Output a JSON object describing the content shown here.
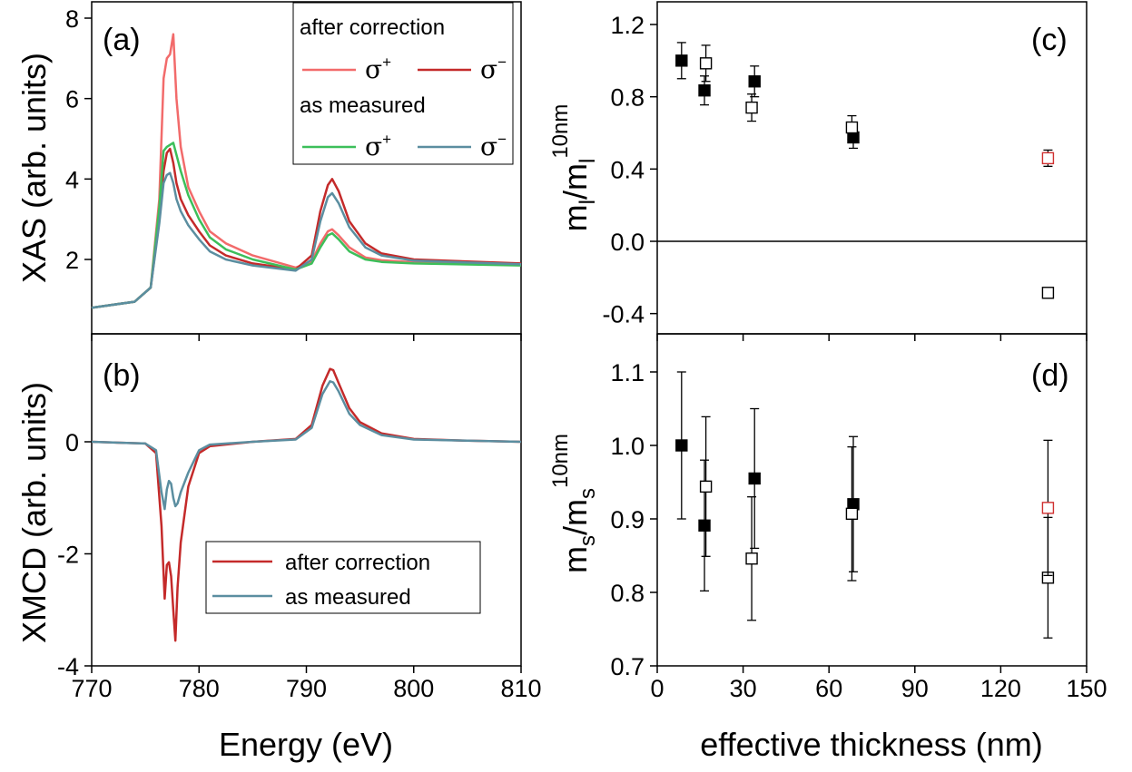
{
  "chart_data": [
    {
      "panel": "(a)",
      "type": "line",
      "xlabel": "",
      "ylabel": "XAS (arb. units)",
      "xlim": [
        770,
        810
      ],
      "ylim": [
        0.8,
        8.5
      ],
      "yticks": [
        "2",
        "4",
        "6",
        "8"
      ],
      "grid": false,
      "legend_position": "top-right",
      "legend": {
        "group1_title": "after correction",
        "group2_title": "as measured",
        "sym_sigma": "σ",
        "sup_plus": "+",
        "sup_minus": "−"
      },
      "series": [
        {
          "name": "σ+",
          "group": "after correction",
          "color": "#f26b6b",
          "x": [
            770,
            774,
            775.5,
            776.3,
            776.7,
            777.0,
            777.3,
            777.6,
            777.9,
            778.3,
            779,
            780,
            781,
            782.5,
            785,
            789,
            790.5,
            791.3,
            792.0,
            792.4,
            793,
            794,
            795.5,
            797,
            800,
            810
          ],
          "y": [
            0.8,
            0.95,
            1.3,
            3.5,
            6.5,
            7.0,
            7.1,
            7.6,
            6.0,
            4.8,
            3.8,
            3.2,
            2.7,
            2.4,
            2.1,
            1.8,
            1.95,
            2.4,
            2.7,
            2.75,
            2.6,
            2.3,
            2.05,
            1.98,
            1.93,
            1.88
          ]
        },
        {
          "name": "σ−",
          "group": "after correction",
          "color": "#c42a2a",
          "x": [
            770,
            774,
            775.5,
            776.3,
            776.7,
            777.0,
            777.3,
            777.6,
            777.9,
            778.3,
            779,
            780,
            781,
            782.5,
            785,
            789,
            790.5,
            791.3,
            792.0,
            792.4,
            793,
            794,
            795.5,
            797,
            800,
            810
          ],
          "y": [
            0.8,
            0.95,
            1.3,
            3.0,
            4.2,
            4.65,
            4.75,
            4.4,
            3.9,
            3.5,
            3.1,
            2.7,
            2.35,
            2.1,
            1.9,
            1.75,
            2.1,
            3.2,
            3.85,
            4.0,
            3.7,
            2.95,
            2.4,
            2.15,
            2.0,
            1.9
          ]
        },
        {
          "name": "σ+",
          "group": "as measured",
          "color": "#3cbf5a",
          "x": [
            770,
            774,
            775.5,
            776.3,
            776.7,
            777.0,
            777.3,
            777.6,
            777.9,
            778.3,
            779,
            780,
            781,
            782.5,
            785,
            789,
            790.5,
            791.3,
            792.0,
            792.4,
            793,
            794,
            795.5,
            797,
            800,
            810
          ],
          "y": [
            0.8,
            0.95,
            1.3,
            3.3,
            4.7,
            4.8,
            4.85,
            4.9,
            4.6,
            4.2,
            3.6,
            3.0,
            2.55,
            2.25,
            2.0,
            1.75,
            1.9,
            2.3,
            2.6,
            2.65,
            2.5,
            2.2,
            2.0,
            1.94,
            1.9,
            1.85
          ]
        },
        {
          "name": "σ−",
          "group": "as measured",
          "color": "#5b8ea0",
          "x": [
            770,
            774,
            775.5,
            776.3,
            776.7,
            777.0,
            777.3,
            777.6,
            777.9,
            778.3,
            779,
            780,
            781,
            782.5,
            785,
            789,
            790.5,
            791.3,
            792.0,
            792.4,
            793,
            794,
            795.5,
            797,
            800,
            810
          ],
          "y": [
            0.8,
            0.95,
            1.3,
            2.9,
            3.9,
            4.1,
            4.15,
            3.9,
            3.5,
            3.2,
            2.85,
            2.5,
            2.2,
            2.0,
            1.85,
            1.72,
            2.0,
            2.95,
            3.55,
            3.65,
            3.4,
            2.8,
            2.3,
            2.1,
            1.97,
            1.88
          ]
        }
      ]
    },
    {
      "panel": "(b)",
      "type": "line",
      "xlabel": "Energy (eV)",
      "ylabel": "XMCD (arb. units)",
      "xlim": [
        770,
        810
      ],
      "ylim": [
        -4,
        2
      ],
      "xticks": [
        "770",
        "780",
        "790",
        "800",
        "810"
      ],
      "yticks": [
        "-4",
        "-2",
        "0"
      ],
      "grid": false,
      "legend_position": "bottom-center",
      "series": [
        {
          "name": "after correction",
          "color": "#c42a2a",
          "x": [
            770,
            775,
            776.0,
            776.5,
            776.8,
            777.0,
            777.2,
            777.4,
            777.6,
            777.8,
            778.0,
            778.3,
            779,
            780,
            781,
            785,
            789,
            790.5,
            791.5,
            792.2,
            792.5,
            793,
            794,
            795,
            797,
            800,
            805,
            810
          ],
          "y": [
            0,
            -0.03,
            -0.2,
            -1.5,
            -2.8,
            -2.2,
            -2.15,
            -2.4,
            -3.0,
            -3.55,
            -2.6,
            -1.8,
            -0.8,
            -0.2,
            -0.08,
            0,
            0.05,
            0.3,
            1.0,
            1.3,
            1.28,
            1.05,
            0.6,
            0.35,
            0.15,
            0.05,
            0.02,
            0
          ]
        },
        {
          "name": "as measured",
          "color": "#5b8ea0",
          "x": [
            770,
            775,
            776.0,
            776.5,
            776.8,
            777.0,
            777.2,
            777.4,
            777.6,
            777.8,
            778.0,
            778.3,
            779,
            780,
            781,
            785,
            789,
            790.5,
            791.5,
            792.2,
            792.5,
            793,
            794,
            795,
            797,
            800,
            805,
            810
          ],
          "y": [
            0,
            -0.03,
            -0.15,
            -0.9,
            -1.2,
            -0.85,
            -0.7,
            -0.75,
            -1.0,
            -1.15,
            -1.1,
            -0.9,
            -0.55,
            -0.15,
            -0.05,
            0,
            0.04,
            0.25,
            0.85,
            1.08,
            1.06,
            0.9,
            0.5,
            0.3,
            0.12,
            0.04,
            0.02,
            0
          ]
        }
      ]
    },
    {
      "panel": "(c)",
      "type": "scatter",
      "xlabel": "",
      "ylabel": "m_l/m_l^10nm",
      "ylabel_parts": {
        "m1": "m",
        "sub1": "l",
        "slash": "/",
        "m2": "m",
        "sub2": "l",
        "sup2": "10nm"
      },
      "xlim": [
        0,
        150
      ],
      "ylim": [
        -0.5,
        1.3
      ],
      "yticks": [
        "-0.4",
        "0.0",
        "0.4",
        "0.8",
        "1.2"
      ],
      "zero_line": true,
      "grid": false,
      "series": [
        {
          "marker": "filled-square",
          "color": "#000000",
          "points": [
            {
              "x": 8.5,
              "y": 1.0,
              "err": 0.1
            },
            {
              "x": 16.5,
              "y": 0.835,
              "err": 0.08
            },
            {
              "x": 34,
              "y": 0.885,
              "err": 0.085
            },
            {
              "x": 68.5,
              "y": 0.575,
              "err": 0.06
            }
          ]
        },
        {
          "marker": "open-square",
          "color": "#000000",
          "points": [
            {
              "x": 17,
              "y": 0.985,
              "err": 0.1
            },
            {
              "x": 33,
              "y": 0.74,
              "err": 0.075
            },
            {
              "x": 68,
              "y": 0.63,
              "err": 0.065
            },
            {
              "x": 136.5,
              "y": -0.285,
              "err": 0.0
            }
          ]
        },
        {
          "marker": "open-square",
          "color": "#d03030",
          "points": [
            {
              "x": 136.5,
              "y": 0.46,
              "err": 0.045
            }
          ]
        }
      ]
    },
    {
      "panel": "(d)",
      "type": "scatter",
      "xlabel": "effective thickness (nm)",
      "ylabel": "m_s/m_s^10nm",
      "ylabel_parts": {
        "m1": "m",
        "sub1": "s",
        "slash": "/",
        "m2": "m",
        "sub2": "s",
        "sup2": "10nm"
      },
      "xlim": [
        0,
        150
      ],
      "ylim": [
        0.7,
        1.15
      ],
      "xticks": [
        "0",
        "30",
        "60",
        "90",
        "120",
        "150"
      ],
      "yticks": [
        "0.7",
        "0.8",
        "0.9",
        "1.0",
        "1.1"
      ],
      "grid": false,
      "series": [
        {
          "marker": "filled-square",
          "color": "#000000",
          "points": [
            {
              "x": 8.5,
              "y": 1.0,
              "err": 0.1
            },
            {
              "x": 16.5,
              "y": 0.891,
              "err": 0.089
            },
            {
              "x": 34,
              "y": 0.955,
              "err": 0.095
            },
            {
              "x": 68.5,
              "y": 0.92,
              "err": 0.092
            }
          ]
        },
        {
          "marker": "open-square",
          "color": "#000000",
          "points": [
            {
              "x": 17,
              "y": 0.944,
              "err": 0.095
            },
            {
              "x": 33,
              "y": 0.846,
              "err": 0.084
            },
            {
              "x": 68,
              "y": 0.907,
              "err": 0.091
            },
            {
              "x": 136.5,
              "y": 0.82,
              "err": 0.082
            }
          ]
        },
        {
          "marker": "open-square",
          "color": "#d03030",
          "points": [
            {
              "x": 136.5,
              "y": 0.915,
              "err": 0.092
            }
          ]
        }
      ]
    }
  ],
  "panel_labels": [
    "(a)",
    "(b)",
    "(c)",
    "(d)"
  ],
  "legend_b": [
    "after correction",
    "as measured"
  ]
}
